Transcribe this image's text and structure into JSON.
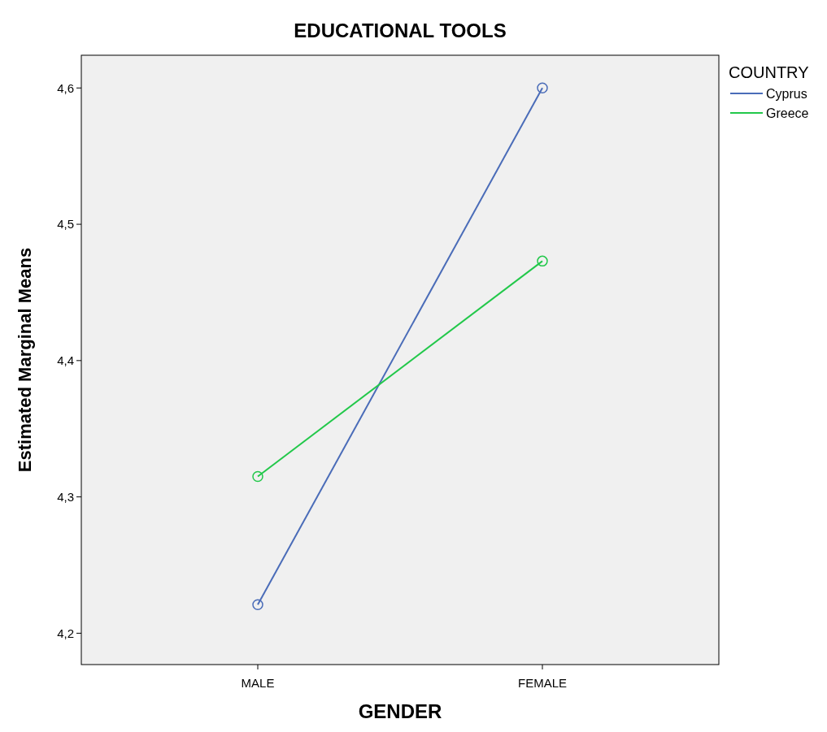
{
  "chart_data": {
    "type": "line",
    "title": "EDUCATIONAL TOOLS",
    "xlabel": "GENDER",
    "ylabel": "Estimated Marginal Means",
    "legend_title": "COUNTRY",
    "categories": [
      "MALE",
      "FEMALE"
    ],
    "series": [
      {
        "name": "Cyprus",
        "color": "#4a6cb8",
        "values": [
          4.221,
          4.6
        ]
      },
      {
        "name": "Greece",
        "color": "#22c84a",
        "values": [
          4.315,
          4.473
        ]
      }
    ],
    "ylim": [
      4.177,
      4.624
    ],
    "yticks": [
      {
        "value": 4.2,
        "label": "4,2"
      },
      {
        "value": 4.3,
        "label": "4,3"
      },
      {
        "value": 4.4,
        "label": "4,4"
      },
      {
        "value": 4.5,
        "label": "4,5"
      },
      {
        "value": 4.6,
        "label": "4,6"
      }
    ],
    "grid": false,
    "legend": "top right",
    "marker": "circle",
    "line_style": "solid"
  }
}
